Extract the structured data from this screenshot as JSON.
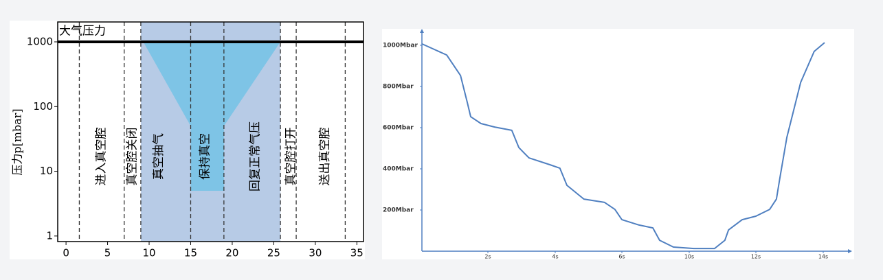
{
  "chart_data": [
    {
      "type": "area",
      "ylabel": "压力p[mbar]",
      "xlim": [
        -1,
        35.8
      ],
      "ylim": [
        0.82,
        2030
      ],
      "log_y": true,
      "xticks": [
        0,
        5,
        10,
        15,
        20,
        25,
        30,
        35
      ],
      "yticks": [
        1,
        10,
        100,
        1000
      ],
      "reference_line": {
        "label": "大气压力",
        "value": 1000
      },
      "phase_bounds": [
        1.6,
        7,
        9,
        15,
        19,
        25.8,
        27.7,
        33.6
      ],
      "shaded_range": [
        9,
        25.8
      ],
      "shade_color": "#b7cbe6",
      "phases": [
        {
          "label": "进入真空腔",
          "x": 4.3
        },
        {
          "label": "真空腔关闭",
          "x": 8
        },
        {
          "label": "真空抽气",
          "x": 11.2
        },
        {
          "label": "保持真空",
          "x": 16.8
        },
        {
          "label": "回复正常气压",
          "x": 22.8
        },
        {
          "label": "真空腔打开",
          "x": 27.1
        },
        {
          "label": "送出真空腔",
          "x": 31.2
        }
      ],
      "pressure_profile": {
        "color": "#7ec4e6",
        "x": [
          9.3,
          15,
          15,
          19,
          19,
          25.8
        ],
        "y": [
          1000,
          50,
          5,
          5,
          50,
          1000
        ]
      }
    },
    {
      "type": "line",
      "xlim": [
        0,
        14.86
      ],
      "ylim": [
        0,
        1080
      ],
      "xticks": [
        {
          "value": 2,
          "label": "2s"
        },
        {
          "value": 4,
          "label": "4s"
        },
        {
          "value": 6,
          "label": "6s"
        },
        {
          "value": 10,
          "label": "10s"
        },
        {
          "value": 12,
          "label": "12s"
        },
        {
          "value": 14,
          "label": "14s"
        }
      ],
      "yticks": [
        {
          "value": 200,
          "label": "200Mbar"
        },
        {
          "value": 400,
          "label": "400Mbar"
        },
        {
          "value": 600,
          "label": "600Mbar"
        },
        {
          "value": 800,
          "label": "800Mbar"
        },
        {
          "value": 1000,
          "label": "1000Mbar"
        }
      ],
      "color": "#4f7fc0",
      "x": [
        0,
        0.75,
        1.17,
        1.38,
        1.48,
        1.79,
        2.2,
        2.71,
        2.92,
        3.22,
        3.84,
        4.14,
        4.35,
        4.86,
        5.48,
        5.79,
        6,
        7.02,
        7.84,
        8.24,
        9.06,
        10.14,
        10.76,
        11.07,
        11.18,
        11.59,
        12,
        12.41,
        12.61,
        12.71,
        12.92,
        13.33,
        13.73,
        14.04
      ],
      "values": [
        1007,
        953,
        853,
        720,
        653,
        620,
        603,
        587,
        503,
        453,
        420,
        403,
        320,
        253,
        237,
        203,
        153,
        127,
        113,
        53,
        20,
        13,
        13,
        53,
        103,
        153,
        170,
        203,
        253,
        353,
        553,
        820,
        970,
        1013
      ]
    }
  ]
}
